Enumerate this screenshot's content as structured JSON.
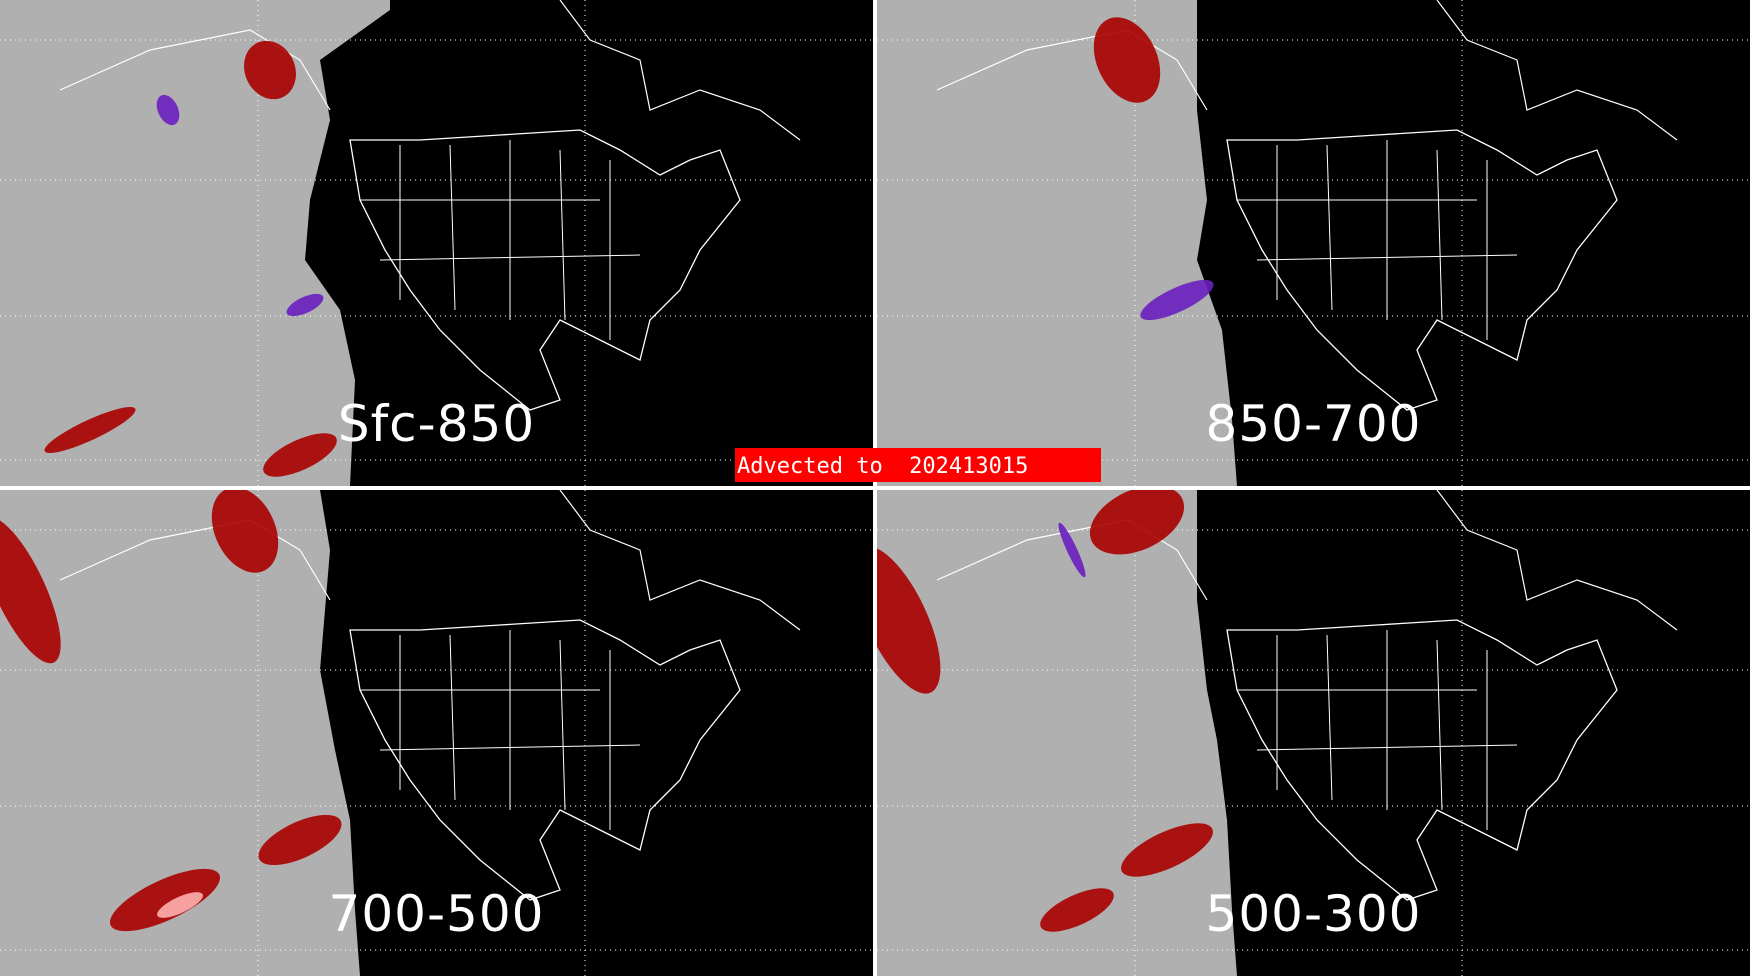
{
  "panels": [
    {
      "label": "Sfc-850"
    },
    {
      "label": "850-700"
    },
    {
      "label": "700-500"
    },
    {
      "label": "500-300"
    }
  ],
  "banner": {
    "text": "Advected to  202413015"
  },
  "colors": {
    "ocean": "#b0b0b0",
    "land": "#000000",
    "outline": "#ffffff",
    "red": "#aa0000",
    "pink": "#ffb0b0",
    "purple": "#6a1fc0",
    "banner": "#ff0000"
  }
}
